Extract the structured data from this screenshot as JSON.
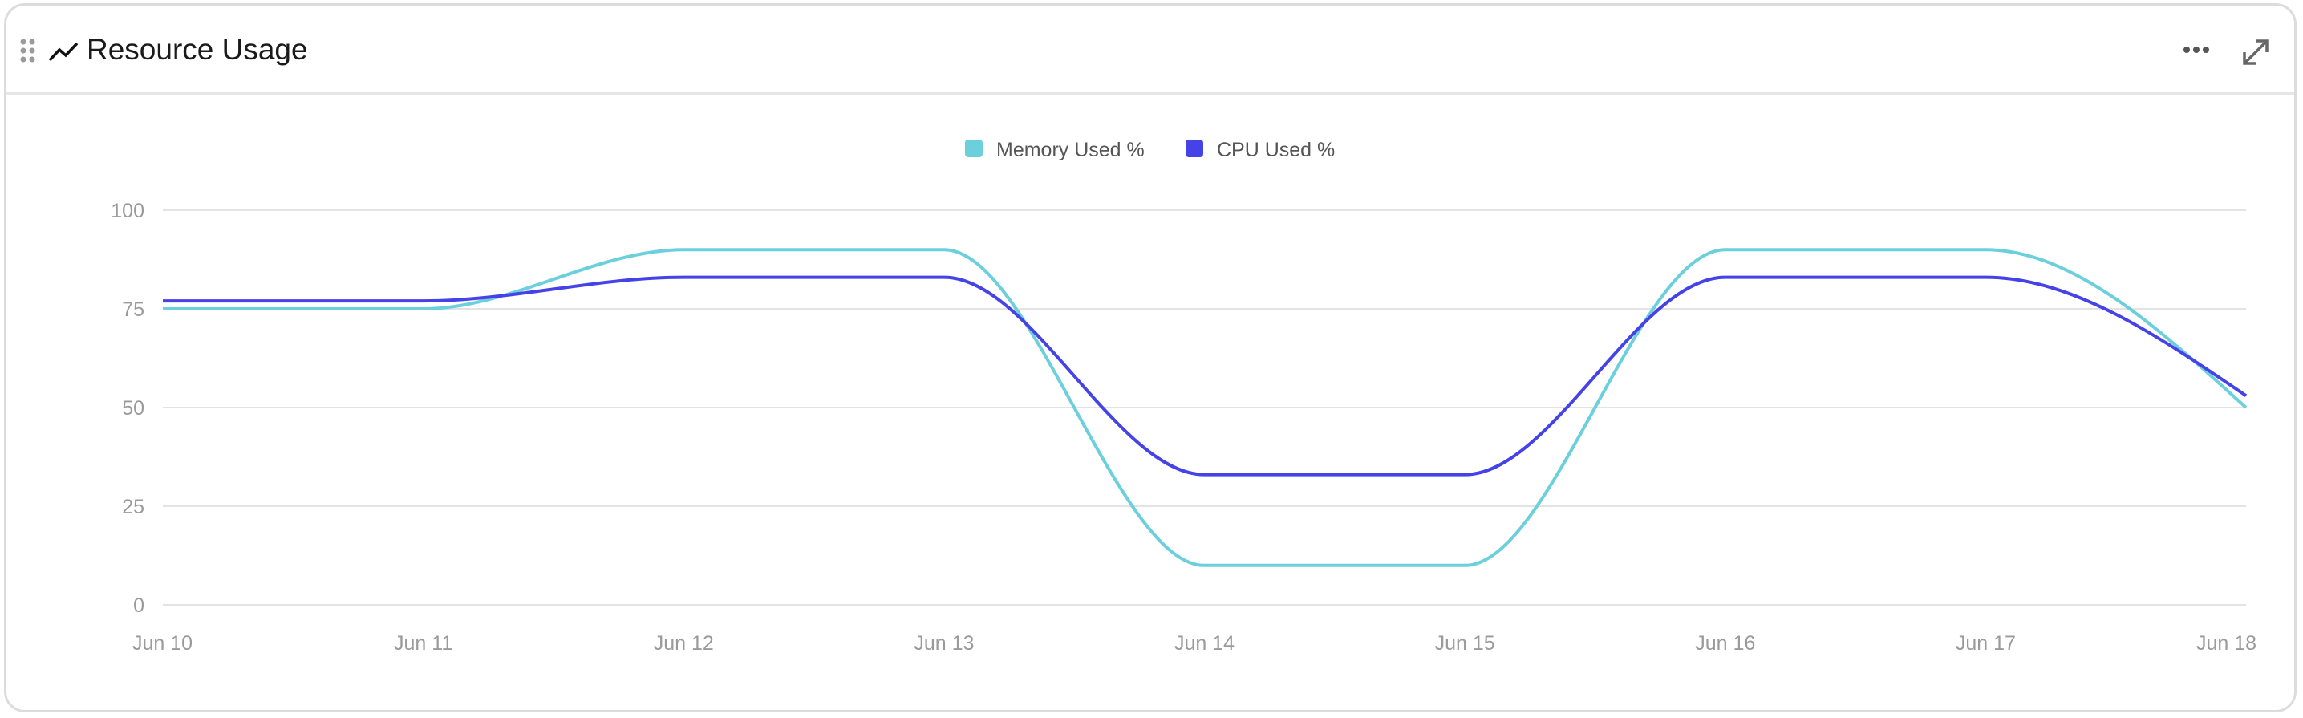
{
  "header": {
    "title": "Resource Usage",
    "drag_icon": "drag-handle-icon",
    "title_icon": "trending-line-icon",
    "more_icon": "more-horizontal-icon",
    "expand_icon": "expand-icon"
  },
  "chart_data": {
    "type": "line",
    "x": [
      "Jun 10",
      "Jun 11",
      "Jun 12",
      "Jun 13",
      "Jun 14",
      "Jun 15",
      "Jun 16",
      "Jun 17",
      "Jun 18"
    ],
    "series": [
      {
        "name": "Memory Used %",
        "color": "#6bcfdc",
        "values": [
          75,
          75,
          90,
          90,
          10,
          10,
          90,
          90,
          50
        ]
      },
      {
        "name": "CPU Used %",
        "color": "#4543e8",
        "values": [
          77,
          77,
          83,
          83,
          33,
          33,
          83,
          83,
          53
        ]
      }
    ],
    "yticks": [
      "0",
      "25",
      "50",
      "75",
      "100"
    ],
    "ylim": [
      0,
      100
    ],
    "grid": true,
    "legend": "top-center",
    "curve": "smooth"
  }
}
